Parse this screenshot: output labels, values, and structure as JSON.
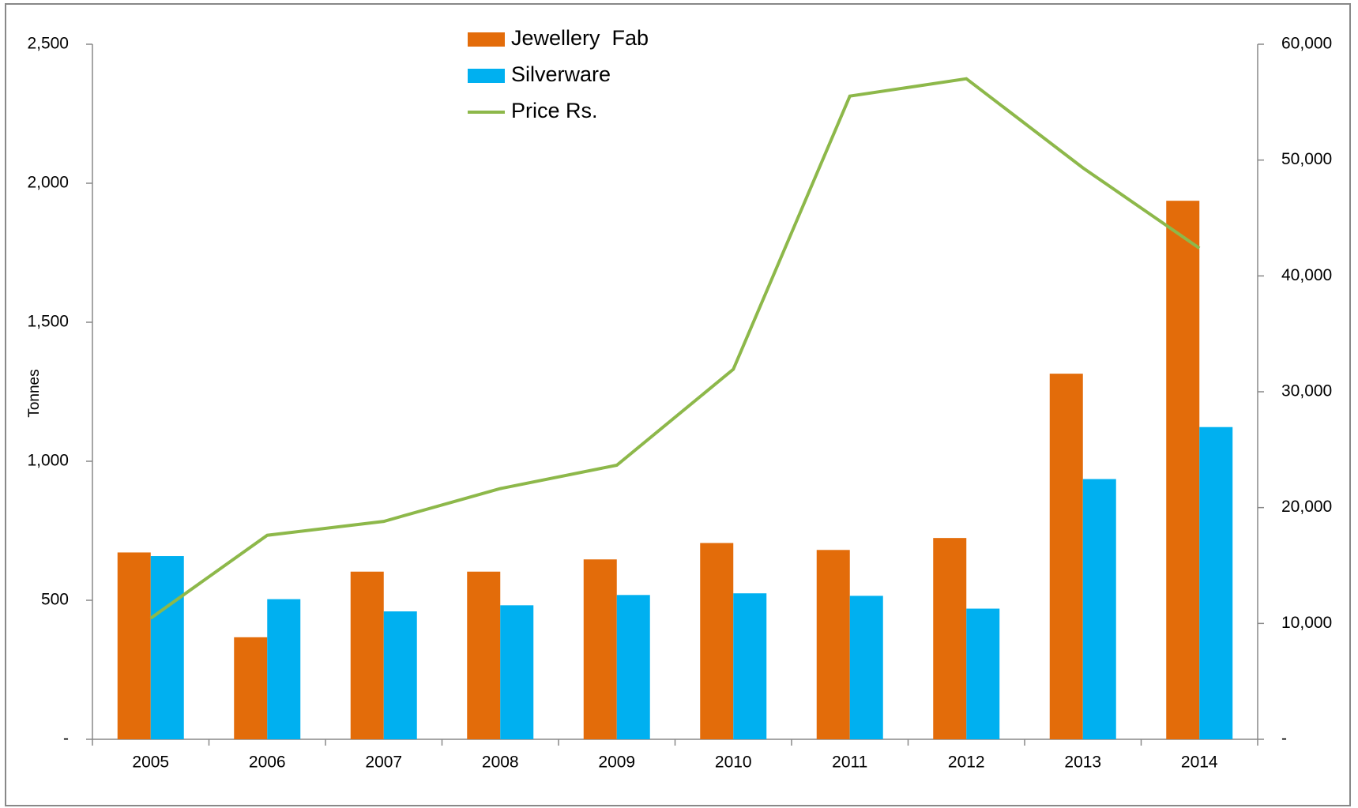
{
  "chart_data": {
    "type": "bar_line",
    "y_label": "Tonnes",
    "categories": [
      "2005",
      "2006",
      "2007",
      "2008",
      "2009",
      "2010",
      "2011",
      "2012",
      "2013",
      "2014"
    ],
    "series": [
      {
        "name": "Jewellery  Fab",
        "color": "#e36c0a",
        "type": "bar",
        "values": [
          672,
          367,
          603,
          603,
          647,
          706,
          681,
          724,
          1315,
          1937
        ]
      },
      {
        "name": "Silverware",
        "color": "#00b0f0",
        "type": "bar",
        "values": [
          659,
          504,
          460,
          482,
          519,
          525,
          516,
          470,
          936,
          1123
        ]
      },
      {
        "name": "Price Rs.",
        "color": "#8db84a",
        "type": "line",
        "axis": "y2",
        "values": [
          10450,
          17610,
          18810,
          21640,
          23660,
          31940,
          55520,
          57020,
          49330,
          42390
        ]
      }
    ],
    "ylim": [
      0,
      2500
    ],
    "yticks": [
      {
        "value": 0,
        "label": "-"
      },
      500,
      {
        "value": 1000,
        "label": "1,000"
      },
      {
        "value": 1500,
        "label": "1,500"
      },
      {
        "value": 2000,
        "label": "2,000"
      },
      {
        "value": 2500,
        "label": "2,500"
      }
    ],
    "y2lim": [
      0,
      60000
    ],
    "y2ticks": [
      {
        "value": 0,
        "label": "-"
      },
      {
        "value": 10000,
        "label": "10,000"
      },
      {
        "value": 20000,
        "label": "20,000"
      },
      {
        "value": 30000,
        "label": "30,000"
      },
      {
        "value": 40000,
        "label": "40,000"
      },
      {
        "value": 50000,
        "label": "50,000"
      },
      {
        "value": 60000,
        "label": "60,000"
      }
    ],
    "legend": "top"
  }
}
